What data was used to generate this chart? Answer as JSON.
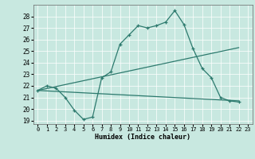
{
  "title": "",
  "xlabel": "Humidex (Indice chaleur)",
  "bg_color": "#c8e8e0",
  "line_color": "#2d7a6e",
  "xlim": [
    -0.5,
    23.5
  ],
  "ylim": [
    18.7,
    29.0
  ],
  "yticks": [
    19,
    20,
    21,
    22,
    23,
    24,
    25,
    26,
    27,
    28
  ],
  "xticks": [
    0,
    1,
    2,
    3,
    4,
    5,
    6,
    7,
    8,
    9,
    10,
    11,
    12,
    13,
    14,
    15,
    16,
    17,
    18,
    19,
    20,
    21,
    22,
    23
  ],
  "line1_x": [
    0,
    1,
    2,
    3,
    4,
    5,
    6,
    7,
    8,
    9,
    10,
    11,
    12,
    13,
    14,
    15,
    16,
    17,
    18,
    19,
    20,
    21,
    22
  ],
  "line1_y": [
    21.6,
    22.0,
    21.8,
    21.0,
    19.9,
    19.1,
    19.3,
    22.7,
    23.2,
    25.6,
    26.4,
    27.2,
    27.0,
    27.2,
    27.5,
    28.5,
    27.3,
    25.2,
    23.5,
    22.7,
    21.0,
    20.7,
    20.6
  ],
  "line2_x": [
    0,
    22
  ],
  "line2_y": [
    21.6,
    25.3
  ],
  "line3_x": [
    0,
    22
  ],
  "line3_y": [
    21.6,
    20.7
  ],
  "grid_color": "#ffffff",
  "xlabel_fontsize": 6.0,
  "tick_fontsize": 5.0
}
